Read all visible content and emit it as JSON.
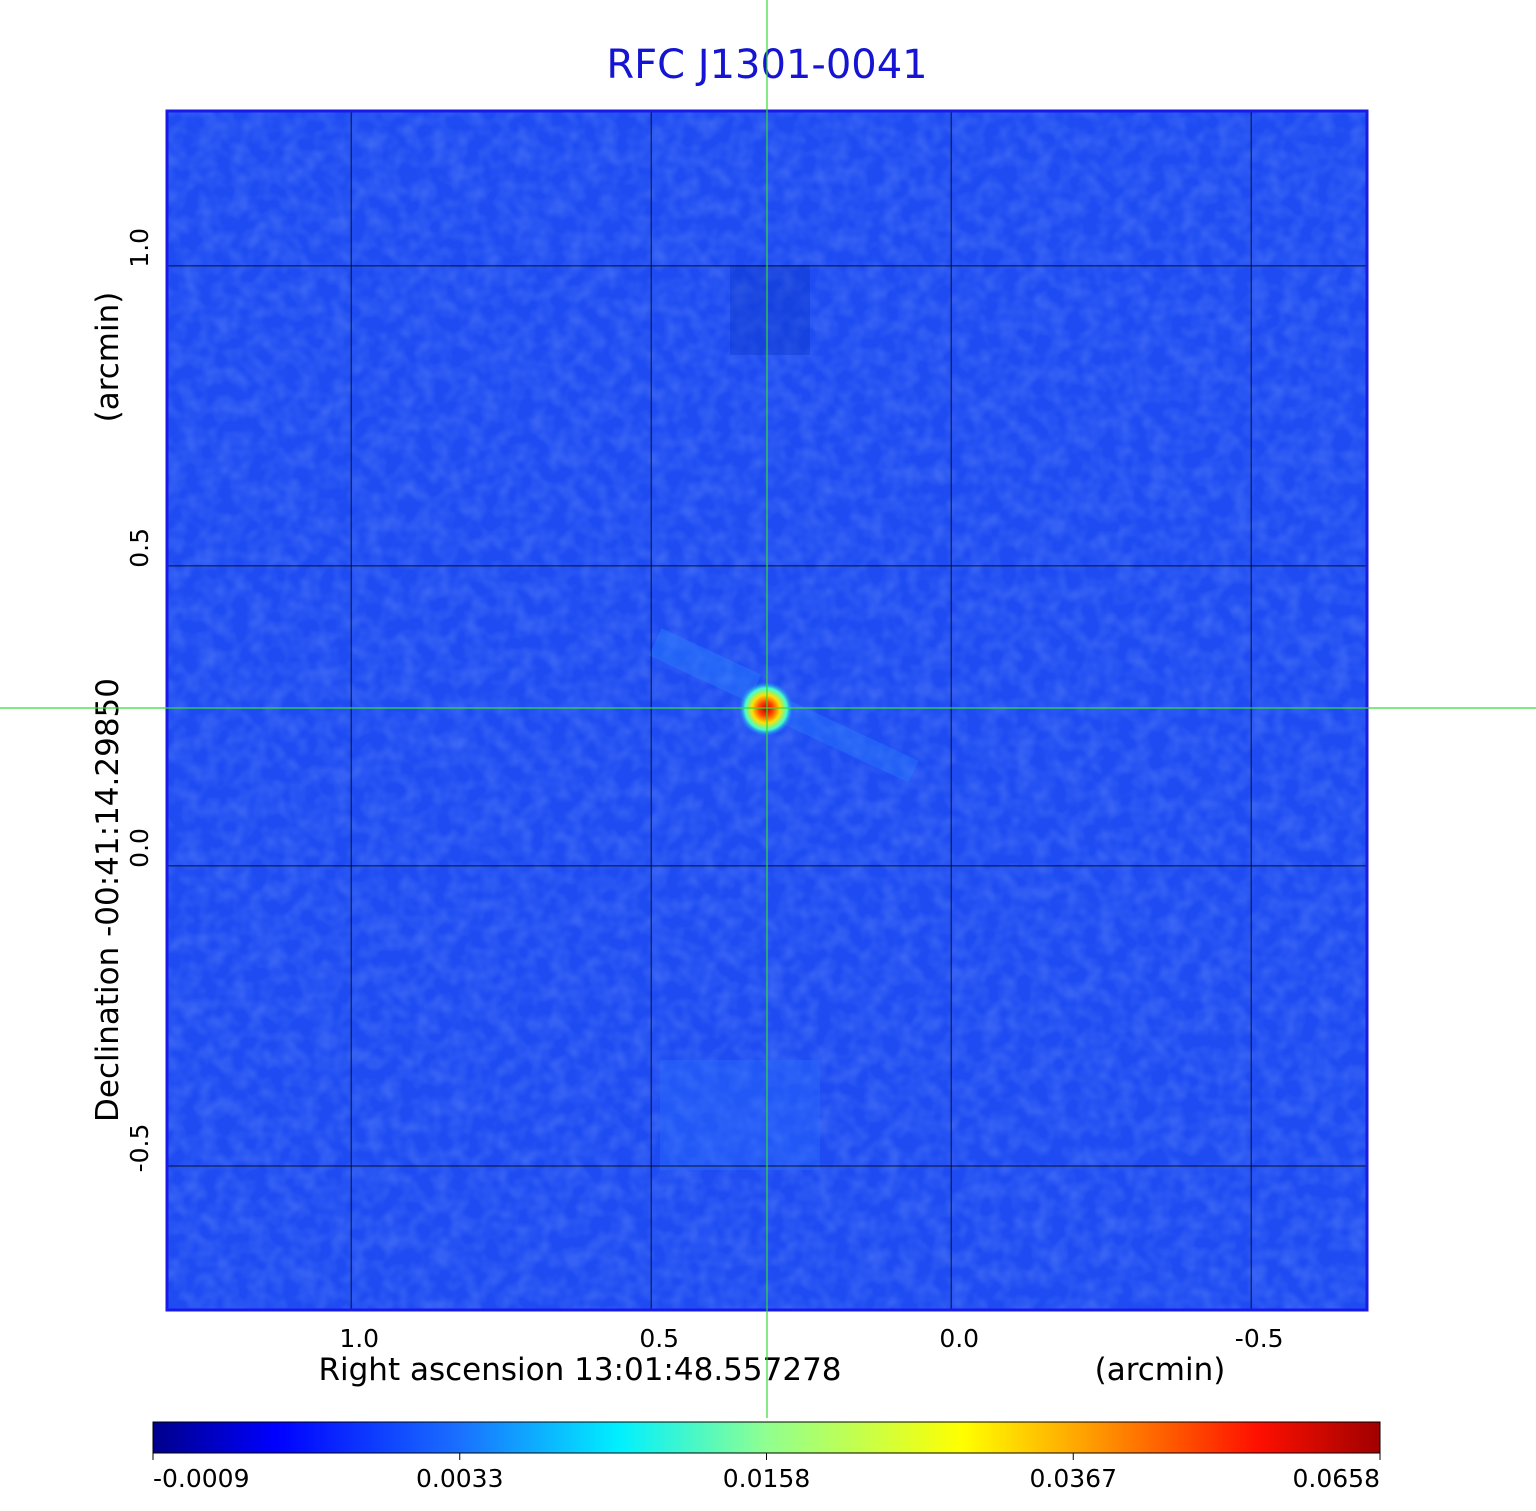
{
  "chart_data": {
    "type": "image",
    "title": "RFC J1301-0041",
    "x_label": "Right ascension  13:01:48.557278",
    "x_unit": "(arcmin)",
    "y_label": "Declination  -00:41:14.29850",
    "y_unit": "(arcmin)",
    "xlim": [
      1.307,
      -0.693
    ],
    "ylim": [
      -0.74,
      1.258
    ],
    "xticks": [
      {
        "value": 1,
        "label": "1.0"
      },
      {
        "value": 0.5,
        "label": "0.5"
      },
      {
        "value": 0,
        "label": "0.0"
      },
      {
        "value": -0.5,
        "label": "-0.5"
      }
    ],
    "yticks": [
      {
        "value": -0.5,
        "label": "-0.5"
      },
      {
        "value": 0,
        "label": "0.0"
      },
      {
        "value": 0.5,
        "label": "0.5"
      },
      {
        "value": 1,
        "label": "1.0"
      }
    ],
    "grid": true,
    "colorbar_ticks": [
      -0.0009,
      0.0033,
      0.0158,
      0.0367,
      0.0658
    ]
  }
}
